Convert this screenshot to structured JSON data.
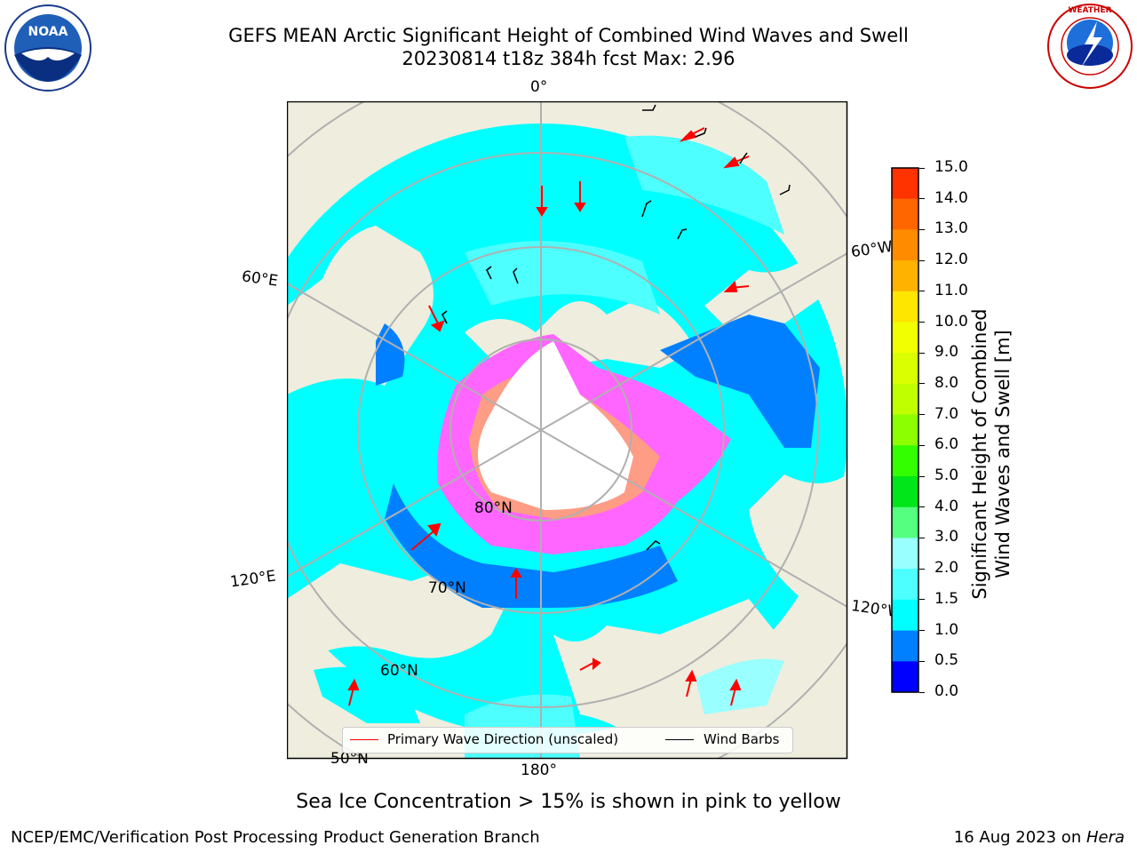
{
  "title": {
    "line1": "GEFS MEAN Arctic Significant Height of Combined Wind Waves and Swell",
    "line2": "20230814 t18z 384h fcst   Max: 2.96"
  },
  "map": {
    "longitude_labels": [
      "0°",
      "60°W",
      "120°W",
      "180°",
      "120°E",
      "60°E"
    ],
    "latitude_labels": [
      "80°N",
      "70°N",
      "60°N",
      "50°N"
    ],
    "land_color": "#efedde",
    "ocean_no_data_color": "#ffffff"
  },
  "legend": {
    "wave_label": "Primary Wave Direction (unscaled)",
    "wind_label": "Wind Barbs",
    "wave_color": "#ff0000",
    "wind_color": "#000000"
  },
  "colorbar": {
    "label_line1": "Significant Height of Combined",
    "label_line2": "Wind Waves and Swell [m]",
    "ticks": [
      "15.0",
      "14.0",
      "13.0",
      "12.0",
      "11.0",
      "10.0",
      "9.0",
      "8.0",
      "7.0",
      "6.0",
      "5.0",
      "4.0",
      "3.0",
      "2.0",
      "1.5",
      "1.0",
      "0.5",
      "0.0"
    ],
    "colors": [
      "#ff0000",
      "#ff3300",
      "#ff6600",
      "#ff8c00",
      "#ffb300",
      "#ffe600",
      "#f2ff00",
      "#d9ff00",
      "#bfff00",
      "#8cff00",
      "#33ff00",
      "#00e61a",
      "#55ff80",
      "#99ffff",
      "#4dffff",
      "#00ffff",
      "#0080ff",
      "#0000ff"
    ]
  },
  "logos": {
    "left_text": "NOAA",
    "right_text": "NATIONAL WEATHER SERVICE"
  },
  "subtitle": "Sea Ice Concentration > 15% is shown in pink to yellow",
  "footer": {
    "left": "NCEP/EMC/Verification Post Processing Product Generation Branch",
    "right_date": "16 Aug 2023 on ",
    "right_host": "Hera"
  }
}
